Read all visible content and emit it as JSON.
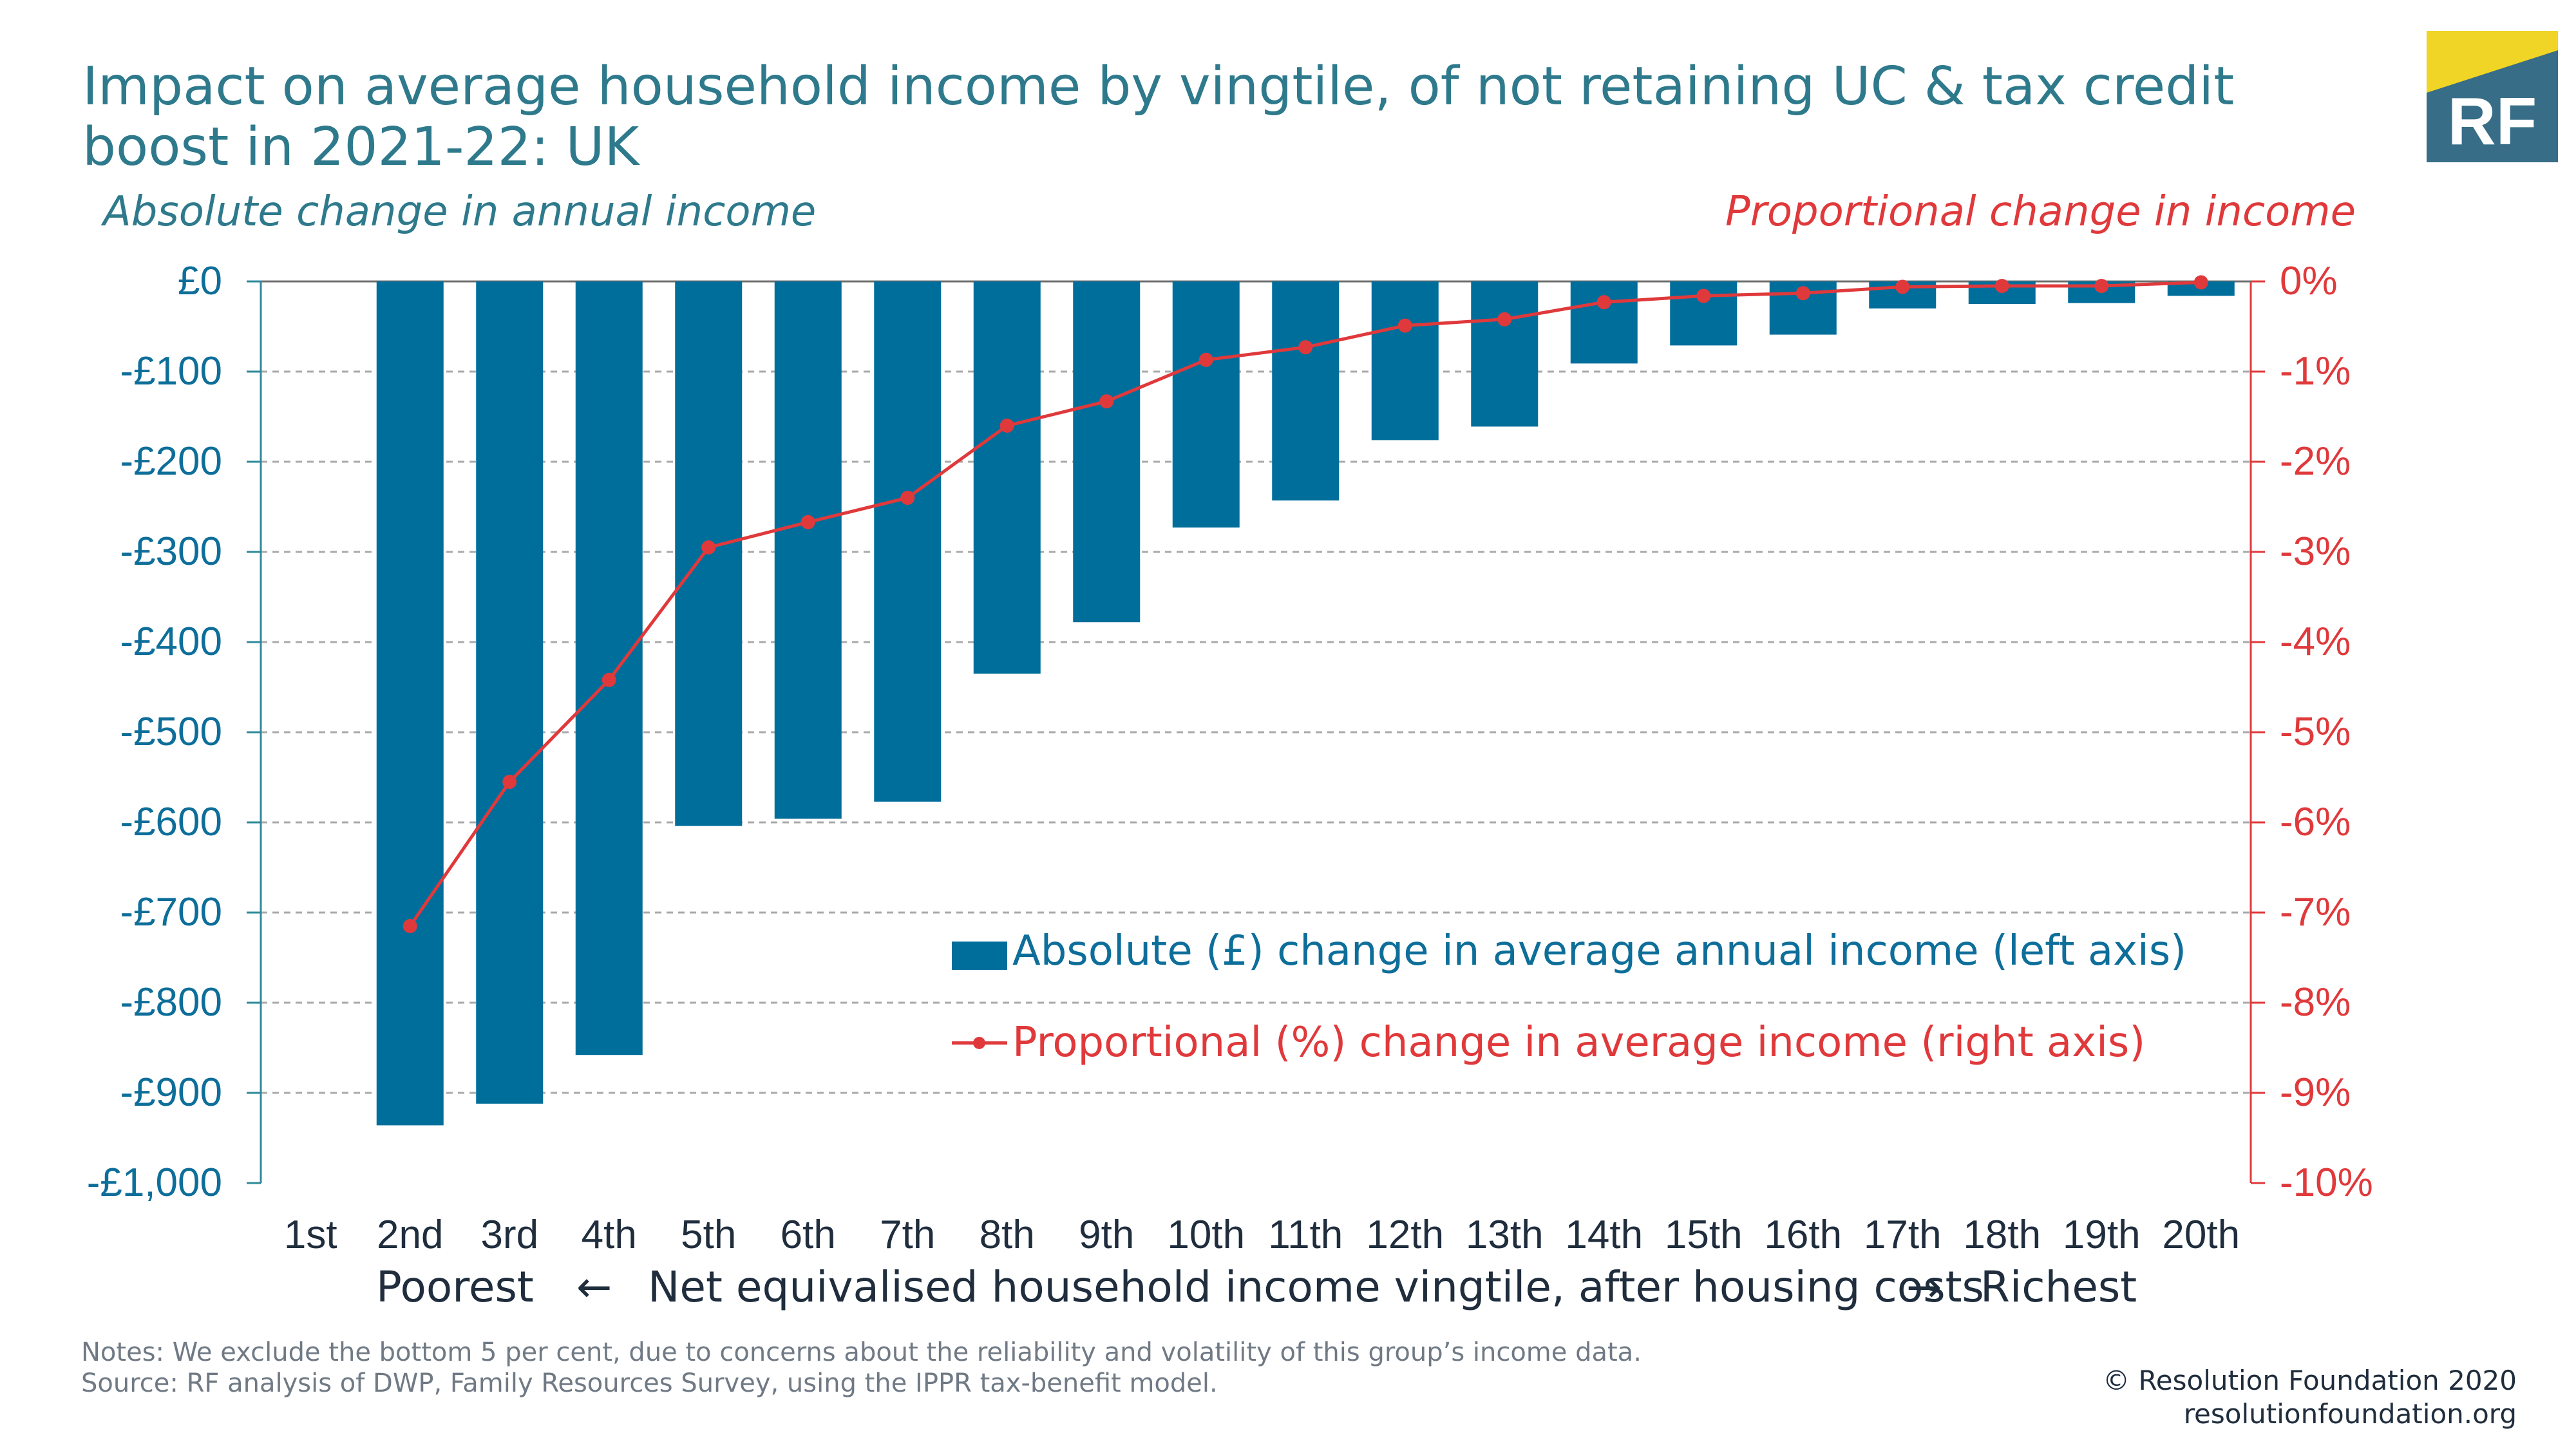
{
  "title": "Impact on average household income by vingtile, of not retaining UC & tax credit boost in 2021-22: UK",
  "logo": {
    "text": "RF",
    "colors": {
      "teal": "#376d87",
      "yellow": "#f0d526"
    }
  },
  "left_axis_title": "Absolute change in annual income",
  "right_axis_title": "Proportional change in income",
  "left_ticks": [
    "£0",
    "-£100",
    "-£200",
    "-£300",
    "-£400",
    "-£500",
    "-£600",
    "-£700",
    "-£800",
    "-£900",
    "-£1,000"
  ],
  "right_ticks": [
    "0%",
    "-1%",
    "-2%",
    "-3%",
    "-4%",
    "-5%",
    "-6%",
    "-7%",
    "-8%",
    "-9%",
    "-10%"
  ],
  "x_axis": {
    "left_end": "Poorest",
    "left_arrow": "←",
    "label": "Net equivalised household income vingtile, after housing costs",
    "right_arrow": "→",
    "right_end": "Richest"
  },
  "legend": {
    "bar": "Absolute (£) change in average annual income (left axis)",
    "line": "Proportional (%) change in average income (right axis)"
  },
  "notes": [
    "Notes: We exclude the bottom 5 per cent, due to concerns about the reliability and volatility of this group’s income data.",
    "Source: RF analysis of DWP, Family Resources Survey, using the IPPR tax-benefit model."
  ],
  "credit": [
    "© Resolution Foundation 2020",
    "resolutionfoundation.org"
  ],
  "colors": {
    "bar": "#006e9b",
    "line": "#e0393b",
    "text_teal": "#2e7a8c"
  },
  "chart_data": {
    "type": "bar",
    "categories": [
      "1st",
      "2nd",
      "3rd",
      "4th",
      "5th",
      "6th",
      "7th",
      "8th",
      "9th",
      "10th",
      "11th",
      "12th",
      "13th",
      "14th",
      "15th",
      "16th",
      "17th",
      "18th",
      "19th",
      "20th"
    ],
    "series": [
      {
        "name": "Absolute (£) change in average annual income (left axis)",
        "type": "bar",
        "axis": "left",
        "values": [
          null,
          -936,
          -912,
          -858,
          -604,
          -596,
          -577,
          -435,
          -378,
          -273,
          -243,
          -176,
          -161,
          -91,
          -71,
          -59,
          -30,
          -25,
          -24,
          -16
        ]
      },
      {
        "name": "Proportional (%) change in average income (right axis)",
        "type": "line",
        "axis": "right",
        "values": [
          null,
          -7.15,
          -5.55,
          -4.42,
          -2.95,
          -2.67,
          -2.4,
          -1.6,
          -1.33,
          -0.87,
          -0.73,
          -0.49,
          -0.42,
          -0.23,
          -0.16,
          -0.13,
          -0.06,
          -0.05,
          -0.05,
          -0.01
        ]
      }
    ],
    "ylim_left": [
      -1000,
      0
    ],
    "ylim_right": [
      -10,
      0
    ],
    "grid": "dashed horizontal",
    "legend_position": "inside, lower right of center"
  }
}
